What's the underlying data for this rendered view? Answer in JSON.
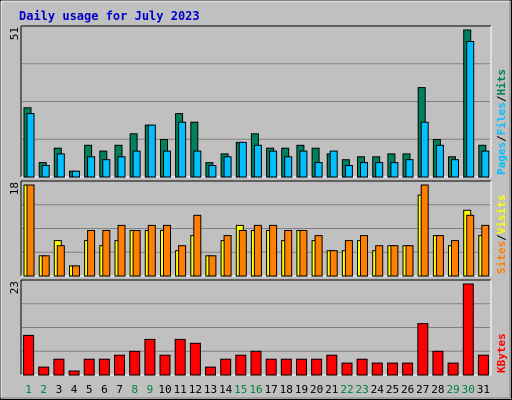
{
  "title": "Daily usage for July 2023",
  "colors": {
    "background": "#c0c0c0",
    "title": "#0000cc",
    "hits": "#00805c",
    "files": "#00c0ff",
    "pages": "#00c0ff",
    "visits": "#ffff00",
    "sites": "#ff8000",
    "kbytes": "#ff0000",
    "weekday_label": "#000000",
    "weekend_label": "#008040"
  },
  "chart_data": [
    {
      "type": "bar",
      "name": "hits-files",
      "ymax_label": "51",
      "ylim": [
        0,
        51
      ],
      "legend": [
        "Pages",
        "/",
        "Files",
        "/",
        "Hits"
      ],
      "categories": [
        "1",
        "2",
        "3",
        "4",
        "5",
        "6",
        "7",
        "8",
        "9",
        "10",
        "11",
        "12",
        "13",
        "14",
        "15",
        "16",
        "17",
        "18",
        "19",
        "20",
        "21",
        "22",
        "23",
        "24",
        "25",
        "26",
        "27",
        "28",
        "29",
        "30",
        "31"
      ],
      "series": [
        {
          "name": "Hits",
          "values": [
            24,
            5,
            10,
            2,
            11,
            9,
            11,
            15,
            18,
            13,
            22,
            19,
            5,
            8,
            12,
            15,
            10,
            10,
            11,
            10,
            8,
            6,
            7,
            7,
            8,
            8,
            31,
            13,
            7,
            51,
            11
          ]
        },
        {
          "name": "Files",
          "values": [
            22,
            4,
            8,
            2,
            7,
            6,
            7,
            9,
            18,
            9,
            19,
            9,
            4,
            7,
            12,
            11,
            9,
            7,
            9,
            5,
            9,
            4,
            5,
            5,
            5,
            6,
            19,
            11,
            6,
            47,
            9
          ]
        }
      ]
    },
    {
      "type": "bar",
      "name": "sites-visits",
      "ymax_label": "18",
      "ylim": [
        0,
        18
      ],
      "legend": [
        "Sites",
        "/",
        "Visits"
      ],
      "categories": [
        "1",
        "2",
        "3",
        "4",
        "5",
        "6",
        "7",
        "8",
        "9",
        "10",
        "11",
        "12",
        "13",
        "14",
        "15",
        "16",
        "17",
        "18",
        "19",
        "20",
        "21",
        "22",
        "23",
        "24",
        "25",
        "26",
        "27",
        "28",
        "29",
        "30",
        "31"
      ],
      "series": [
        {
          "name": "Visits",
          "values": [
            18,
            4,
            7,
            2,
            7,
            6,
            7,
            9,
            9,
            9,
            5,
            8,
            4,
            7,
            10,
            9,
            9,
            7,
            9,
            7,
            5,
            5,
            7,
            5,
            6,
            6,
            16,
            8,
            6,
            13,
            8
          ]
        },
        {
          "name": "Sites",
          "values": [
            18,
            4,
            6,
            2,
            9,
            9,
            10,
            9,
            10,
            10,
            6,
            12,
            4,
            8,
            9,
            10,
            10,
            9,
            9,
            8,
            5,
            7,
            8,
            6,
            6,
            6,
            18,
            8,
            7,
            12,
            10
          ]
        }
      ]
    },
    {
      "type": "bar",
      "name": "kbytes",
      "ymax_label": "23",
      "ylim": [
        0,
        23
      ],
      "legend": [
        "KBytes"
      ],
      "categories": [
        "1",
        "2",
        "3",
        "4",
        "5",
        "6",
        "7",
        "8",
        "9",
        "10",
        "11",
        "12",
        "13",
        "14",
        "15",
        "16",
        "17",
        "18",
        "19",
        "20",
        "21",
        "22",
        "23",
        "24",
        "25",
        "26",
        "27",
        "28",
        "29",
        "30",
        "31"
      ],
      "series": [
        {
          "name": "KBytes",
          "values": [
            10,
            2,
            4,
            1,
            4,
            4,
            5,
            6,
            9,
            5,
            9,
            8,
            2,
            4,
            5,
            6,
            4,
            4,
            4,
            4,
            5,
            3,
            4,
            3,
            3,
            3,
            13,
            6,
            3,
            23,
            5
          ]
        }
      ]
    }
  ],
  "days": [
    "1",
    "2",
    "3",
    "4",
    "5",
    "6",
    "7",
    "8",
    "9",
    "10",
    "11",
    "12",
    "13",
    "14",
    "15",
    "16",
    "17",
    "18",
    "19",
    "20",
    "21",
    "22",
    "23",
    "24",
    "25",
    "26",
    "27",
    "28",
    "29",
    "30",
    "31"
  ],
  "weekend_days": [
    "1",
    "2",
    "8",
    "9",
    "15",
    "16",
    "22",
    "23",
    "29",
    "30"
  ]
}
